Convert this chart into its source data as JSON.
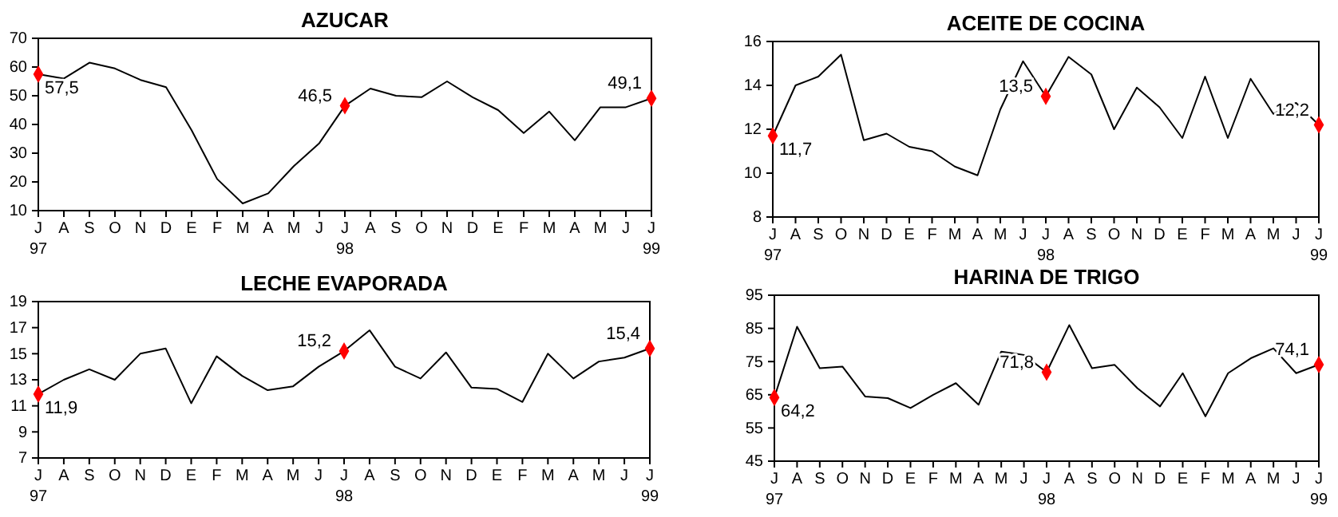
{
  "chart_data": [
    {
      "type": "line",
      "title": "AZUCAR",
      "categories": [
        "J\n97",
        "A",
        "S",
        "O",
        "N",
        "D",
        "E",
        "F",
        "M",
        "A",
        "M",
        "J",
        "J\n98",
        "A",
        "S",
        "O",
        "N",
        "D",
        "E",
        "F",
        "M",
        "A",
        "M",
        "J",
        "J\n99"
      ],
      "ylim": [
        10,
        70
      ],
      "yticks": [
        10,
        20,
        30,
        40,
        50,
        60,
        70
      ],
      "grid": false,
      "series": [
        {
          "color": "#000000",
          "marker": "none",
          "values": [
            57.5,
            56,
            61.5,
            59.5,
            55.5,
            53,
            38,
            21,
            12.5,
            16,
            25.5,
            33.5,
            46.5,
            52.5,
            50,
            49.5,
            55,
            49.5,
            45,
            37,
            44.5,
            34.5,
            46,
            46,
            49.1
          ]
        },
        {
          "type": "scatter",
          "color": "#ff0000",
          "marker": "diamond",
          "values": [
            57.5,
            null,
            null,
            null,
            null,
            null,
            null,
            null,
            null,
            null,
            null,
            null,
            46.5,
            null,
            null,
            null,
            null,
            null,
            null,
            null,
            null,
            null,
            null,
            null,
            49.1
          ],
          "value_labels": [
            "57,5",
            null,
            null,
            null,
            null,
            null,
            null,
            null,
            null,
            null,
            null,
            null,
            "46,5",
            null,
            null,
            null,
            null,
            null,
            null,
            null,
            null,
            null,
            null,
            null,
            "49,1"
          ]
        }
      ]
    },
    {
      "type": "line",
      "title": "ACEITE DE COCINA",
      "categories": [
        "J\n97",
        "A",
        "S",
        "O",
        "N",
        "D",
        "E",
        "F",
        "M",
        "A",
        "M",
        "J",
        "J\n98",
        "A",
        "S",
        "O",
        "N",
        "D",
        "E",
        "F",
        "M",
        "A",
        "M",
        "J",
        "J\n99"
      ],
      "ylim": [
        8,
        16
      ],
      "yticks": [
        8,
        10,
        12,
        14,
        16
      ],
      "grid": false,
      "series": [
        {
          "color": "#000000",
          "marker": "none",
          "values": [
            11.7,
            14,
            14.4,
            15.4,
            11.5,
            11.8,
            11.2,
            11,
            10.3,
            9.9,
            12.9,
            15.1,
            13.5,
            15.3,
            14.5,
            12,
            13.9,
            13,
            11.6,
            14.4,
            11.6,
            14.3,
            12.7,
            13.2,
            12.2
          ]
        },
        {
          "type": "scatter",
          "color": "#ff0000",
          "marker": "diamond",
          "values": [
            11.7,
            null,
            null,
            null,
            null,
            null,
            null,
            null,
            null,
            null,
            null,
            null,
            13.5,
            null,
            null,
            null,
            null,
            null,
            null,
            null,
            null,
            null,
            null,
            null,
            12.2
          ],
          "value_labels": [
            "11,7",
            null,
            null,
            null,
            null,
            null,
            null,
            null,
            null,
            null,
            null,
            null,
            "13,5",
            null,
            null,
            null,
            null,
            null,
            null,
            null,
            null,
            null,
            null,
            null,
            "12,2"
          ]
        }
      ]
    },
    {
      "type": "line",
      "title": "LECHE EVAPORADA",
      "categories": [
        "J\n97",
        "A",
        "S",
        "O",
        "N",
        "D",
        "E",
        "F",
        "M",
        "A",
        "M",
        "J",
        "J\n98",
        "A",
        "S",
        "O",
        "N",
        "D",
        "E",
        "F",
        "M",
        "A",
        "M",
        "J",
        "J\n99"
      ],
      "ylim": [
        7,
        19
      ],
      "yticks": [
        7,
        9,
        11,
        13,
        15,
        17,
        19
      ],
      "grid": false,
      "series": [
        {
          "color": "#000000",
          "marker": "none",
          "values": [
            11.9,
            13,
            13.8,
            13,
            15,
            15.4,
            11.2,
            14.8,
            13.3,
            12.2,
            12.5,
            14,
            15.2,
            16.8,
            14,
            13.1,
            15.1,
            12.4,
            12.3,
            11.3,
            15,
            13.1,
            14.4,
            14.7,
            15.4
          ]
        },
        {
          "type": "scatter",
          "color": "#ff0000",
          "marker": "diamond",
          "values": [
            11.9,
            null,
            null,
            null,
            null,
            null,
            null,
            null,
            null,
            null,
            null,
            null,
            15.2,
            null,
            null,
            null,
            null,
            null,
            null,
            null,
            null,
            null,
            null,
            null,
            15.4
          ],
          "value_labels": [
            "11,9",
            null,
            null,
            null,
            null,
            null,
            null,
            null,
            null,
            null,
            null,
            null,
            "15,2",
            null,
            null,
            null,
            null,
            null,
            null,
            null,
            null,
            null,
            null,
            null,
            "15,4"
          ]
        }
      ]
    },
    {
      "type": "line",
      "title": "HARINA DE TRIGO",
      "categories": [
        "J\n97",
        "A",
        "S",
        "O",
        "N",
        "D",
        "E",
        "F",
        "M",
        "A",
        "M",
        "J",
        "J\n98",
        "A",
        "S",
        "O",
        "N",
        "D",
        "E",
        "F",
        "M",
        "A",
        "M",
        "J",
        "J\n99"
      ],
      "ylim": [
        45,
        95
      ],
      "yticks": [
        45,
        55,
        65,
        75,
        85,
        95
      ],
      "grid": false,
      "series": [
        {
          "color": "#000000",
          "marker": "none",
          "values": [
            64.2,
            85.5,
            73,
            73.5,
            64.5,
            64,
            61,
            65,
            68.5,
            62,
            78,
            77,
            71.8,
            86,
            73,
            74,
            67,
            61.5,
            71.5,
            58.5,
            71.5,
            76,
            79,
            71.5,
            74.1
          ]
        },
        {
          "type": "scatter",
          "color": "#ff0000",
          "marker": "diamond",
          "values": [
            64.2,
            null,
            null,
            null,
            null,
            null,
            null,
            null,
            null,
            null,
            null,
            null,
            71.8,
            null,
            null,
            null,
            null,
            null,
            null,
            null,
            null,
            null,
            null,
            null,
            74.1
          ],
          "value_labels": [
            "64,2",
            null,
            null,
            null,
            null,
            null,
            null,
            null,
            null,
            null,
            null,
            null,
            "71,8",
            null,
            null,
            null,
            null,
            null,
            null,
            null,
            null,
            null,
            null,
            null,
            "74,1"
          ]
        }
      ]
    }
  ]
}
